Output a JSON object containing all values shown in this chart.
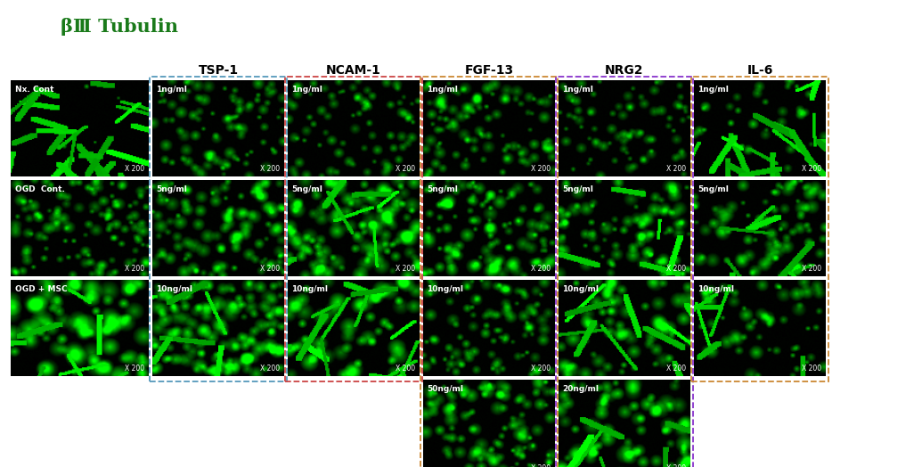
{
  "title": "βⅢ Tubulin",
  "title_color": "#1a7a1a",
  "title_fontsize": 15,
  "background_color": "#ffffff",
  "column_headers": [
    "TSP-1",
    "NCAM-1",
    "FGF-13",
    "NRG2",
    "IL-6"
  ],
  "row_labels": [
    "Nx. Cont",
    "OGD  Cont.",
    "OGD + MSC"
  ],
  "figure_width": 10.35,
  "figure_height": 5.24,
  "dpi": 100,
  "box_border_colors": [
    "#5599bb",
    "#cc4444",
    "#cc8833",
    "#8833cc",
    "#cc8833"
  ],
  "n_rows_per_col": [
    3,
    3,
    4,
    4,
    3
  ],
  "cell_labels": {
    "ctrl": [
      "Nx. Cont",
      "OGD  Cont.",
      "OGD + MSC"
    ],
    "TSP-1": [
      "1ng/ml",
      "5ng/ml",
      "10ng/ml"
    ],
    "NCAM-1": [
      "1ng/ml",
      "5ng/ml",
      "10ng/ml"
    ],
    "FGF-13": [
      "1ng/ml",
      "5ng/ml",
      "10ng/ml",
      "50ng/ml"
    ],
    "NRG2": [
      "1ng/ml",
      "5ng/ml",
      "10ng/ml",
      "20ng/ml"
    ],
    "IL-6": [
      "1ng/ml",
      "5ng/ml",
      "10ng/ml"
    ]
  },
  "magnification": "X 200"
}
